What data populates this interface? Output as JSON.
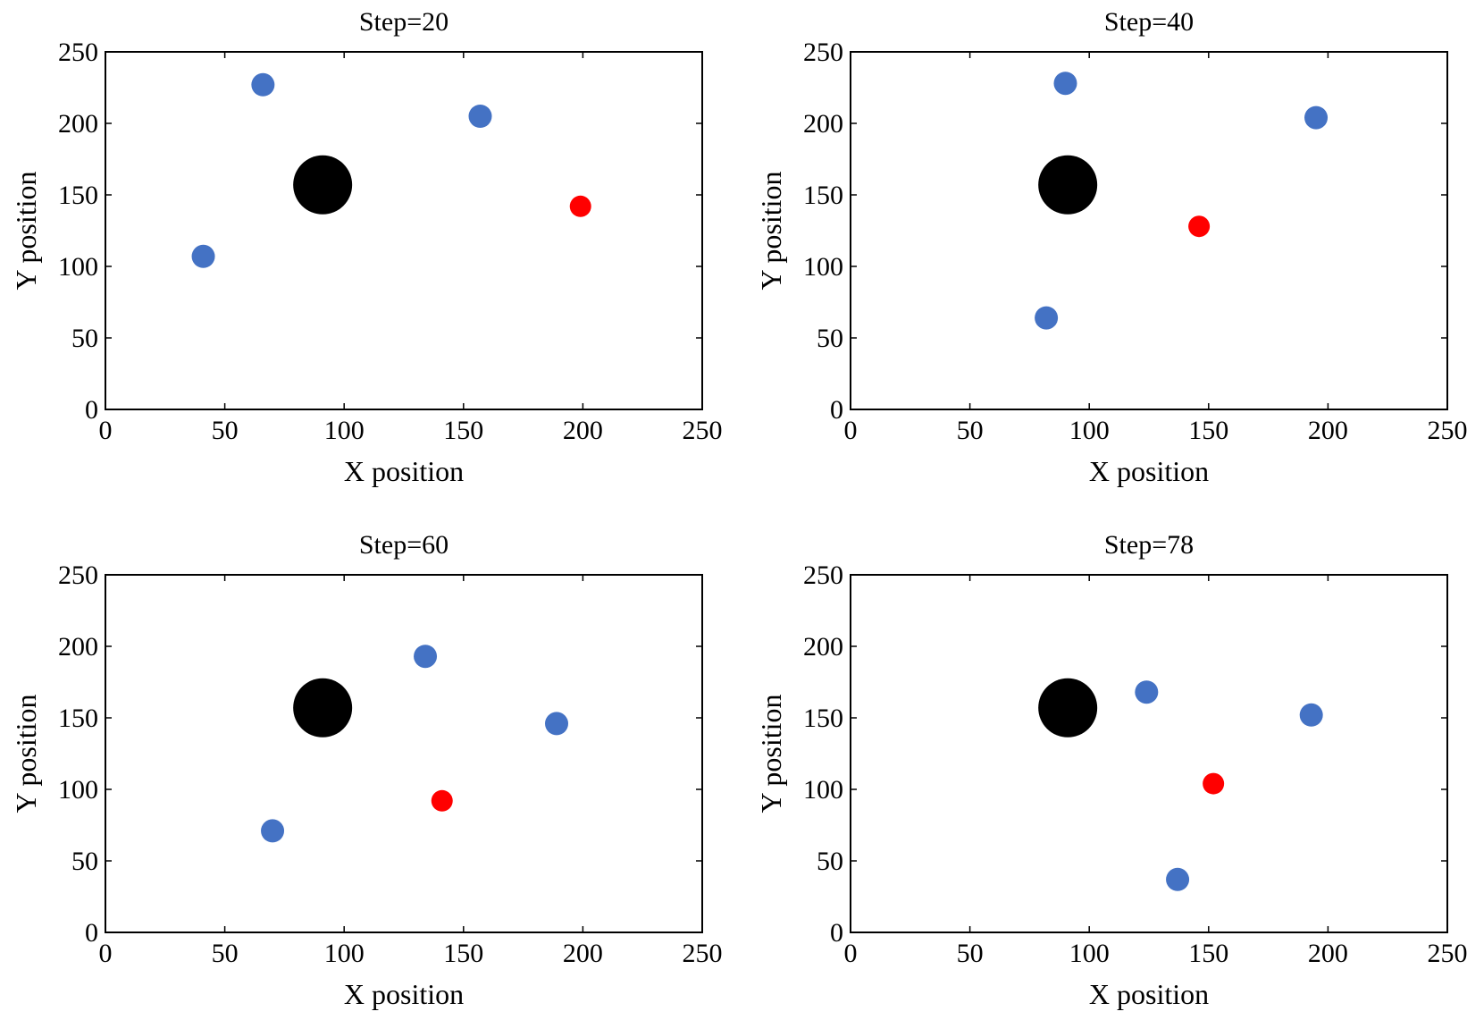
{
  "colors": {
    "obstacle": "#000000",
    "agent": "#4472C4",
    "target": "#FF0000"
  },
  "chart_data": [
    {
      "type": "scatter",
      "title": "Step=20",
      "xlabel": "X position",
      "ylabel": "Y position",
      "xlim": [
        0,
        250
      ],
      "ylim": [
        0,
        250
      ],
      "xticks": [
        "0",
        "50",
        "100",
        "150",
        "200",
        "250"
      ],
      "yticks": [
        "0",
        "50",
        "100",
        "150",
        "200",
        "250"
      ],
      "series": [
        {
          "name": "obstacle",
          "role": "obstacle",
          "points": [
            [
              91,
              157
            ]
          ]
        },
        {
          "name": "agents",
          "role": "agent",
          "points": [
            [
              66,
              227
            ],
            [
              157,
              205
            ],
            [
              41,
              107
            ]
          ]
        },
        {
          "name": "target",
          "role": "target",
          "points": [
            [
              199,
              142
            ]
          ]
        }
      ]
    },
    {
      "type": "scatter",
      "title": "Step=40",
      "xlabel": "X position",
      "ylabel": "Y position",
      "xlim": [
        0,
        250
      ],
      "ylim": [
        0,
        250
      ],
      "xticks": [
        "0",
        "50",
        "100",
        "150",
        "200",
        "250"
      ],
      "yticks": [
        "0",
        "50",
        "100",
        "150",
        "200",
        "250"
      ],
      "series": [
        {
          "name": "obstacle",
          "role": "obstacle",
          "points": [
            [
              91,
              157
            ]
          ]
        },
        {
          "name": "agents",
          "role": "agent",
          "points": [
            [
              90,
              228
            ],
            [
              195,
              204
            ],
            [
              82,
              64
            ]
          ]
        },
        {
          "name": "target",
          "role": "target",
          "points": [
            [
              146,
              128
            ]
          ]
        }
      ]
    },
    {
      "type": "scatter",
      "title": "Step=60",
      "xlabel": "X position",
      "ylabel": "Y position",
      "xlim": [
        0,
        250
      ],
      "ylim": [
        0,
        250
      ],
      "xticks": [
        "0",
        "50",
        "100",
        "150",
        "200",
        "250"
      ],
      "yticks": [
        "0",
        "50",
        "100",
        "150",
        "200",
        "250"
      ],
      "series": [
        {
          "name": "obstacle",
          "role": "obstacle",
          "points": [
            [
              91,
              157
            ]
          ]
        },
        {
          "name": "agents",
          "role": "agent",
          "points": [
            [
              134,
              193
            ],
            [
              189,
              146
            ],
            [
              70,
              71
            ]
          ]
        },
        {
          "name": "target",
          "role": "target",
          "points": [
            [
              141,
              92
            ]
          ]
        }
      ]
    },
    {
      "type": "scatter",
      "title": "Step=78",
      "xlabel": "X position",
      "ylabel": "Y position",
      "xlim": [
        0,
        250
      ],
      "ylim": [
        0,
        250
      ],
      "xticks": [
        "0",
        "50",
        "100",
        "150",
        "200",
        "250"
      ],
      "yticks": [
        "0",
        "50",
        "100",
        "150",
        "200",
        "250"
      ],
      "series": [
        {
          "name": "obstacle",
          "role": "obstacle",
          "points": [
            [
              91,
              157
            ]
          ]
        },
        {
          "name": "agents",
          "role": "agent",
          "points": [
            [
              124,
              168
            ],
            [
              193,
              152
            ],
            [
              137,
              37
            ]
          ]
        },
        {
          "name": "target",
          "role": "target",
          "points": [
            [
              152,
              104
            ]
          ]
        }
      ]
    }
  ]
}
